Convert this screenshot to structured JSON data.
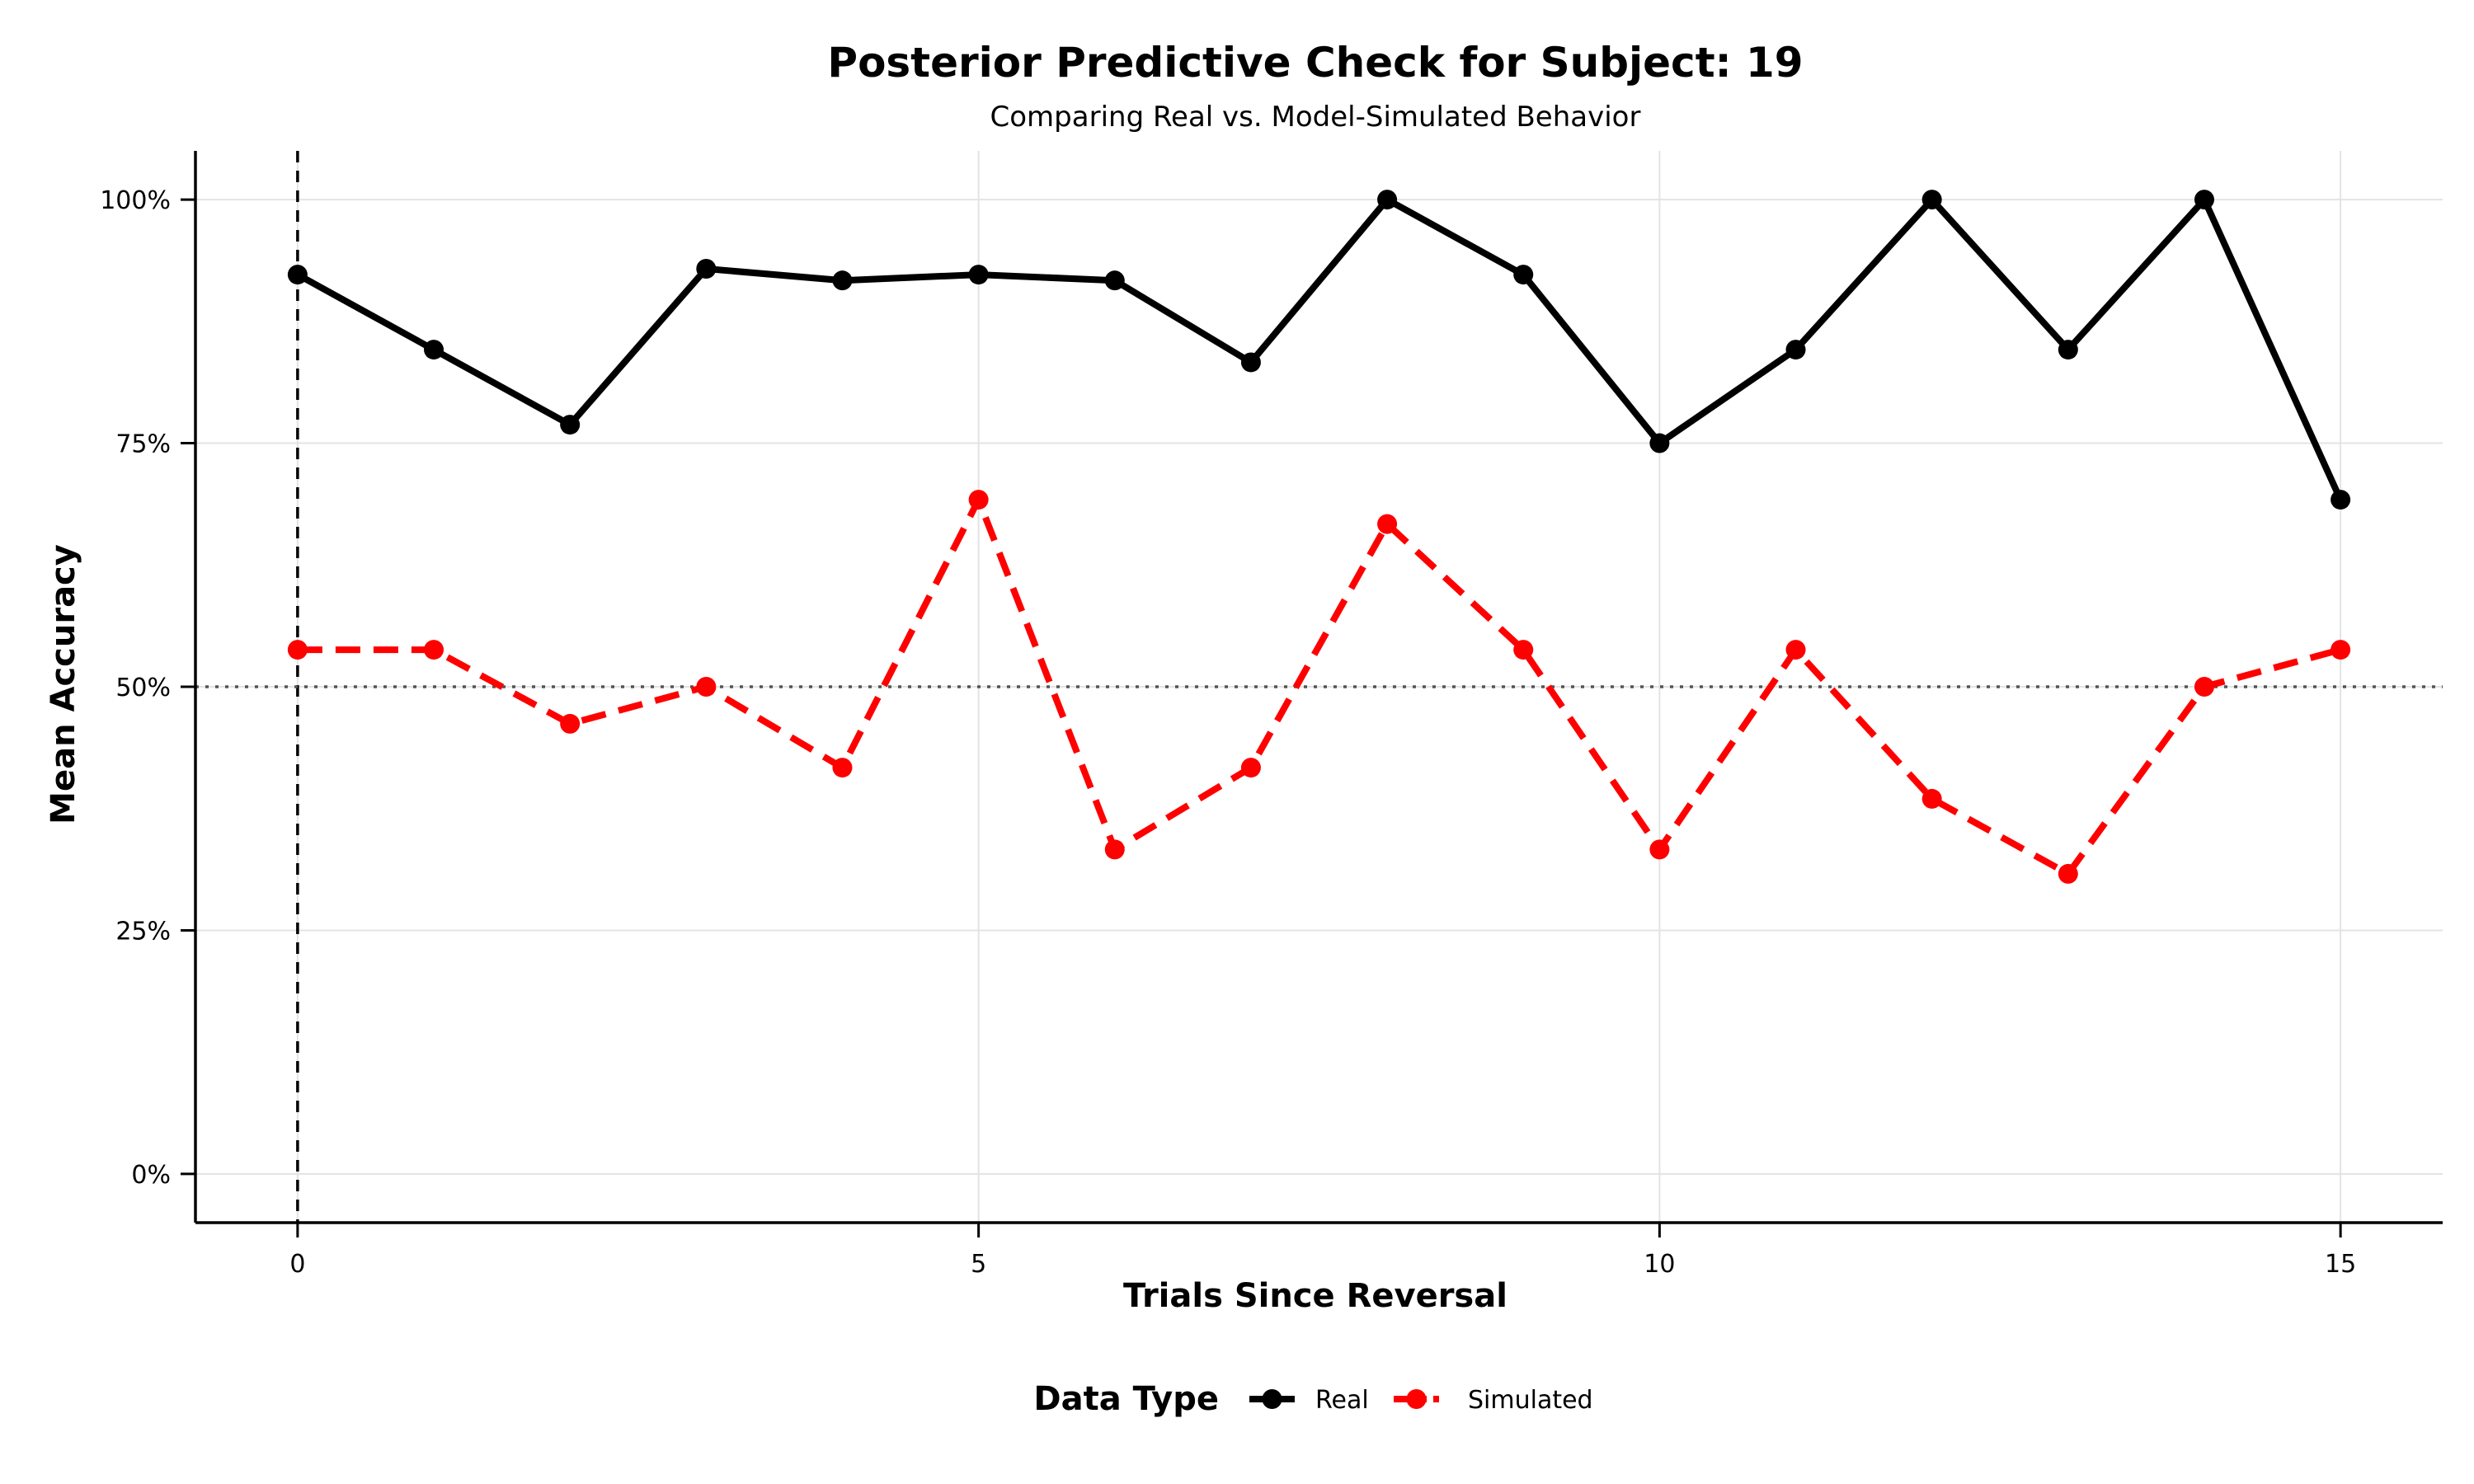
{
  "chart_data": {
    "type": "line",
    "title": "Posterior Predictive Check for Subject: 19",
    "subtitle": "Comparing Real vs. Model-Simulated Behavior",
    "xlabel": "Trials Since Reversal",
    "ylabel": "Mean Accuracy",
    "xlim": [
      -0.75,
      15.75
    ],
    "ylim": [
      -0.05,
      1.05
    ],
    "x_ticks": [
      0,
      5,
      10,
      15
    ],
    "x_tick_labels": [
      "0",
      "5",
      "10",
      "15"
    ],
    "y_ticks": [
      0,
      0.25,
      0.5,
      0.75,
      1.0
    ],
    "y_tick_labels": [
      "0%",
      "25%",
      "50%",
      "75%",
      "100%"
    ],
    "grid": true,
    "reference_lines": [
      {
        "orientation": "vertical",
        "value": 0,
        "style": "dashed",
        "color": "#000000"
      },
      {
        "orientation": "horizontal",
        "value": 0.5,
        "style": "dotted",
        "color": "#555555"
      }
    ],
    "x": [
      0,
      1,
      2,
      3,
      4,
      5,
      6,
      7,
      8,
      9,
      10,
      11,
      12,
      13,
      14,
      15
    ],
    "series": [
      {
        "name": "Real",
        "color": "#000000",
        "style": "solid",
        "values": [
          0.923,
          0.846,
          0.769,
          0.929,
          0.917,
          0.923,
          0.917,
          0.833,
          1.0,
          0.923,
          0.75,
          0.846,
          1.0,
          0.846,
          1.0,
          0.692
        ]
      },
      {
        "name": "Simulated",
        "color": "#ff0000",
        "style": "dashed",
        "values": [
          0.538,
          0.538,
          0.462,
          0.5,
          0.417,
          0.692,
          0.333,
          0.417,
          0.667,
          0.538,
          0.333,
          0.538,
          0.385,
          0.308,
          0.5,
          0.538
        ]
      }
    ],
    "legend": {
      "title": "Data Type",
      "placement": "bottom"
    }
  }
}
